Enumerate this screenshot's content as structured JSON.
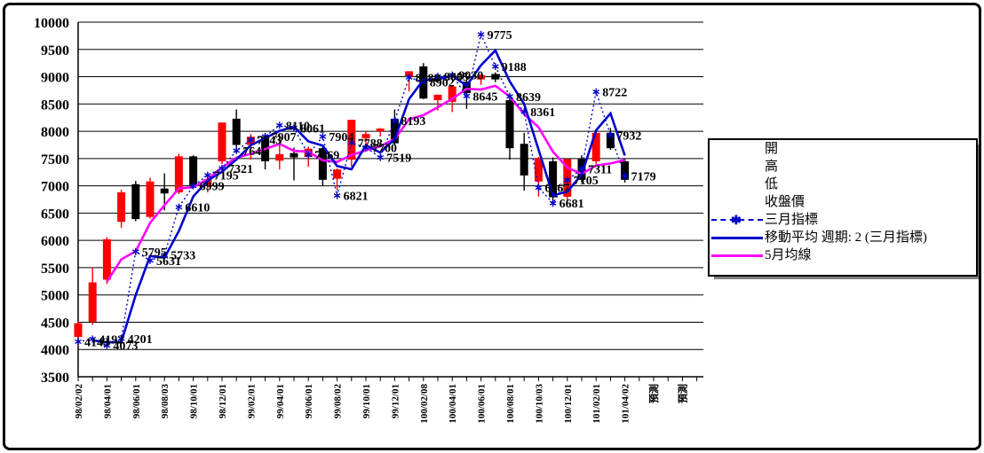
{
  "window": {
    "background": "#FFFFFF",
    "border_color": "#000000"
  },
  "colors": {
    "up_candle": "#FF0000",
    "down_candle": "#000000",
    "indicator_line": "#0000CC",
    "ma2_line": "#0000CC",
    "ma5_line": "#FF00FF",
    "grid": "#000000",
    "label_text": "#000000"
  },
  "legend": {
    "items": [
      {
        "marker": "none",
        "label": "開"
      },
      {
        "marker": "none",
        "label": "高"
      },
      {
        "marker": "none",
        "label": "低"
      },
      {
        "marker": "none",
        "label": "收盤價"
      },
      {
        "marker": "dashed-star",
        "label": "三月指標"
      },
      {
        "marker": "line-blue",
        "label": "移動平均  週期: 2 (三月指標)"
      },
      {
        "marker": "line-magenta",
        "label": "5月均線"
      }
    ]
  },
  "chart_data": {
    "type": "candlestick+line",
    "title": "",
    "grid": "horizontal",
    "y_axis": {
      "min": 3500,
      "max": 10000,
      "step": 500
    },
    "x_axis": {
      "tick_labels": [
        "98/02/02",
        "98/04/01",
        "98/06/01",
        "98/08/03",
        "98/10/01",
        "98/12/01",
        "99/02/01",
        "99/04/01",
        "99/06/01",
        "99/08/02",
        "99/10/01",
        "99/12/01",
        "100/02/08",
        "100/04/01",
        "100/06/01",
        "100/08/01",
        "100/10/03",
        "100/12/01",
        "101/02/01",
        "101/04/02",
        "預測",
        "預測"
      ],
      "label_every_n_points": 2,
      "forecast_labels": [
        "預測",
        "預測"
      ]
    },
    "series": [
      {
        "name": "開高低收盤價",
        "type": "candlestick",
        "ohlc": [
          [
            4230,
            4520,
            4060,
            4480
          ],
          [
            4510,
            5500,
            4450,
            5230
          ],
          [
            5280,
            6060,
            5200,
            6020
          ],
          [
            6340,
            6930,
            6230,
            6880
          ],
          [
            7030,
            7090,
            6350,
            6390
          ],
          [
            6430,
            7150,
            6400,
            7080
          ],
          [
            6950,
            7230,
            6550,
            6860
          ],
          [
            6880,
            7590,
            6850,
            7540
          ],
          [
            7540,
            7560,
            6990,
            7010
          ],
          [
            7010,
            7150,
            6880,
            7120
          ],
          [
            7450,
            8160,
            7400,
            8160
          ],
          [
            8230,
            8400,
            7600,
            7750
          ],
          [
            7750,
            7950,
            7480,
            7900
          ],
          [
            7900,
            7950,
            7300,
            7450
          ],
          [
            7460,
            7950,
            7300,
            7580
          ],
          [
            7600,
            7700,
            7100,
            7520
          ],
          [
            7530,
            7720,
            7350,
            7680
          ],
          [
            7690,
            7720,
            7000,
            7110
          ],
          [
            7130,
            7320,
            6920,
            7300
          ],
          [
            7480,
            8210,
            7350,
            8210
          ],
          [
            7870,
            7990,
            7760,
            7950
          ],
          [
            8000,
            8060,
            7900,
            8050
          ],
          [
            8230,
            8400,
            7750,
            7780
          ],
          [
            8990,
            9100,
            8730,
            9100
          ],
          [
            9190,
            9250,
            8590,
            8600
          ],
          [
            8570,
            8670,
            8380,
            8670
          ],
          [
            8540,
            8820,
            8350,
            8820
          ],
          [
            8910,
            8950,
            8410,
            8700
          ],
          [
            8950,
            9050,
            8850,
            9030
          ],
          [
            9050,
            9080,
            8900,
            8950
          ],
          [
            8570,
            8670,
            7480,
            7690
          ],
          [
            7770,
            7970,
            6910,
            7190
          ],
          [
            7080,
            7530,
            6800,
            7510
          ],
          [
            7450,
            7520,
            6650,
            6790
          ],
          [
            6800,
            7500,
            6650,
            7490
          ],
          [
            7490,
            7560,
            7060,
            7110
          ],
          [
            7450,
            7990,
            7400,
            7970
          ],
          [
            7970,
            8060,
            7660,
            7690
          ],
          [
            7450,
            7500,
            7060,
            7110
          ]
        ]
      },
      {
        "name": "三月指標",
        "type": "line-dashed-star",
        "show_labels": true,
        "values": [
          4143,
          4192,
          4073,
          4201,
          5795,
          5631,
          5733,
          6610,
          6999,
          7195,
          7321,
          7646,
          7843,
          7907,
          8110,
          8061,
          7569,
          7904,
          6821,
          7788,
          7700,
          7519,
          8193,
          8988,
          8902,
          9005,
          9030,
          8645,
          9775,
          9188,
          8639,
          8361,
          6967,
          6681,
          7105,
          7311,
          8722,
          7932,
          7179
        ]
      },
      {
        "name": "移動平均  週期: 2 (三月指標)",
        "type": "line",
        "derived": "ma2_of_indicator"
      },
      {
        "name": "5月均線",
        "type": "line",
        "derived": "ma5_of_close"
      }
    ]
  }
}
